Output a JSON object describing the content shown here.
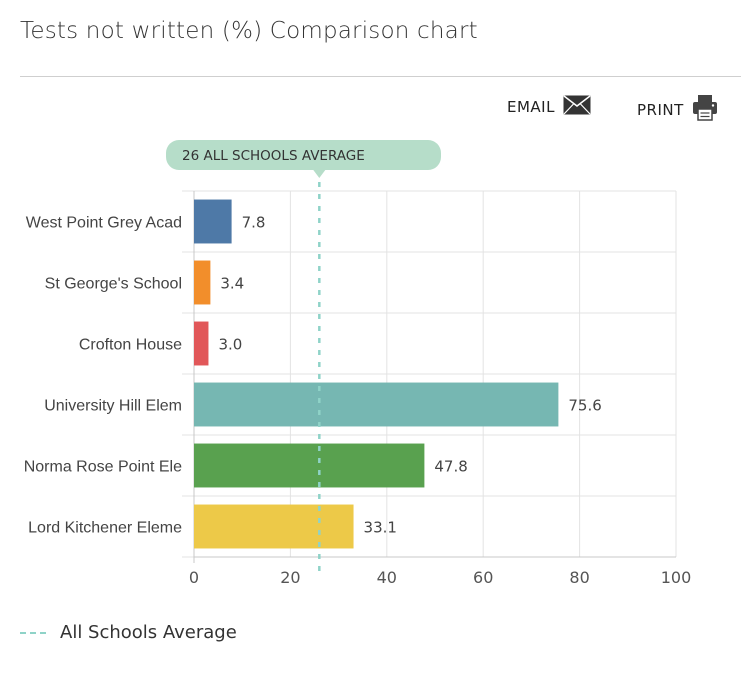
{
  "header": {
    "title": "Tests not written (%) Comparison chart"
  },
  "actions": {
    "email_label": "EMAIL",
    "print_label": "PRINT"
  },
  "icons": {
    "email": "envelope-icon",
    "print": "printer-icon"
  },
  "average_label": "26 ALL SCHOOLS AVERAGE",
  "legend": {
    "label": "All Schools Average"
  },
  "colors": {
    "average_line": "#8fd3c8",
    "average_badge": "#b6ddc9",
    "grid": "#e3e3e3"
  },
  "chart_data": {
    "type": "bar",
    "orientation": "horizontal",
    "title": "Tests not written (%) Comparison chart",
    "categories": [
      "West Point Grey Acad",
      "St George's School",
      "Crofton House",
      "University Hill Elem",
      "Norma Rose Point Ele",
      "Lord Kitchener Eleme"
    ],
    "values": [
      7.8,
      3.4,
      3.0,
      75.6,
      47.8,
      33.1
    ],
    "value_labels": [
      "7.8",
      "3.4",
      "3.0",
      "75.6",
      "47.8",
      "33.1"
    ],
    "bar_colors": [
      "#4e79a7",
      "#f28e2b",
      "#e15759",
      "#76b7b2",
      "#59a14f",
      "#edc948"
    ],
    "xlim": [
      0,
      100
    ],
    "x_ticks": [
      0,
      20,
      40,
      60,
      80,
      100
    ],
    "reference_line": {
      "value": 26,
      "label": "All Schools Average"
    },
    "grid": true,
    "legend_position": "bottom-left"
  }
}
